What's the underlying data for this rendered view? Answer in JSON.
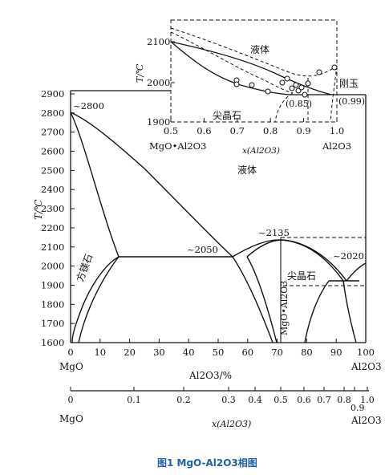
{
  "caption": "图1  MgO-Al2O3相图",
  "main": {
    "ylabel": "T/℃",
    "y_ticks": [
      "2900",
      "2800",
      "2700",
      "2600",
      "2500",
      "2400",
      "2300",
      "2200",
      "2100",
      "2000",
      "1900",
      "1800",
      "1700",
      "1600"
    ],
    "x_ticks": [
      "0",
      "10",
      "20",
      "30",
      "40",
      "50",
      "60",
      "70",
      "80",
      "90",
      "100"
    ],
    "xlabel": "Al2O3/%",
    "x_end_left": "MgO",
    "x_end_right": "Al2O3",
    "labels": {
      "liquid": "液体",
      "t2800": "~2800",
      "t2050": "~2050",
      "t2135": "~2135",
      "t2020": "~2020",
      "periclase": "方镁石",
      "spinel": "尖晶石",
      "spinel_compound": "MgO•Al2O3"
    }
  },
  "mole_axis": {
    "ticks": [
      "0",
      "0.1",
      "0.2",
      "0.3",
      "0.4",
      "0.5",
      "0.6",
      "0.7",
      "0.8",
      "1.0"
    ],
    "extra_tick": "0.9",
    "xlabel": "x(Al2O3)",
    "left": "MgO",
    "right": "Al2O3"
  },
  "inset": {
    "ylabel": "T/℃",
    "y_ticks": [
      "2100",
      "2000",
      "1900"
    ],
    "x_ticks": [
      "0.5",
      "0.6",
      "0.7",
      "0.8",
      "0.9",
      "1.0"
    ],
    "xlabel": "x(Al2O3)",
    "left": "MgO•Al2O3",
    "right": "Al2O3",
    "labels": {
      "liquid": "液体",
      "spinel": "尖晶石",
      "corundum": "刚玉",
      "p085": "(0.85)",
      "p099": "(0.99)"
    }
  }
}
